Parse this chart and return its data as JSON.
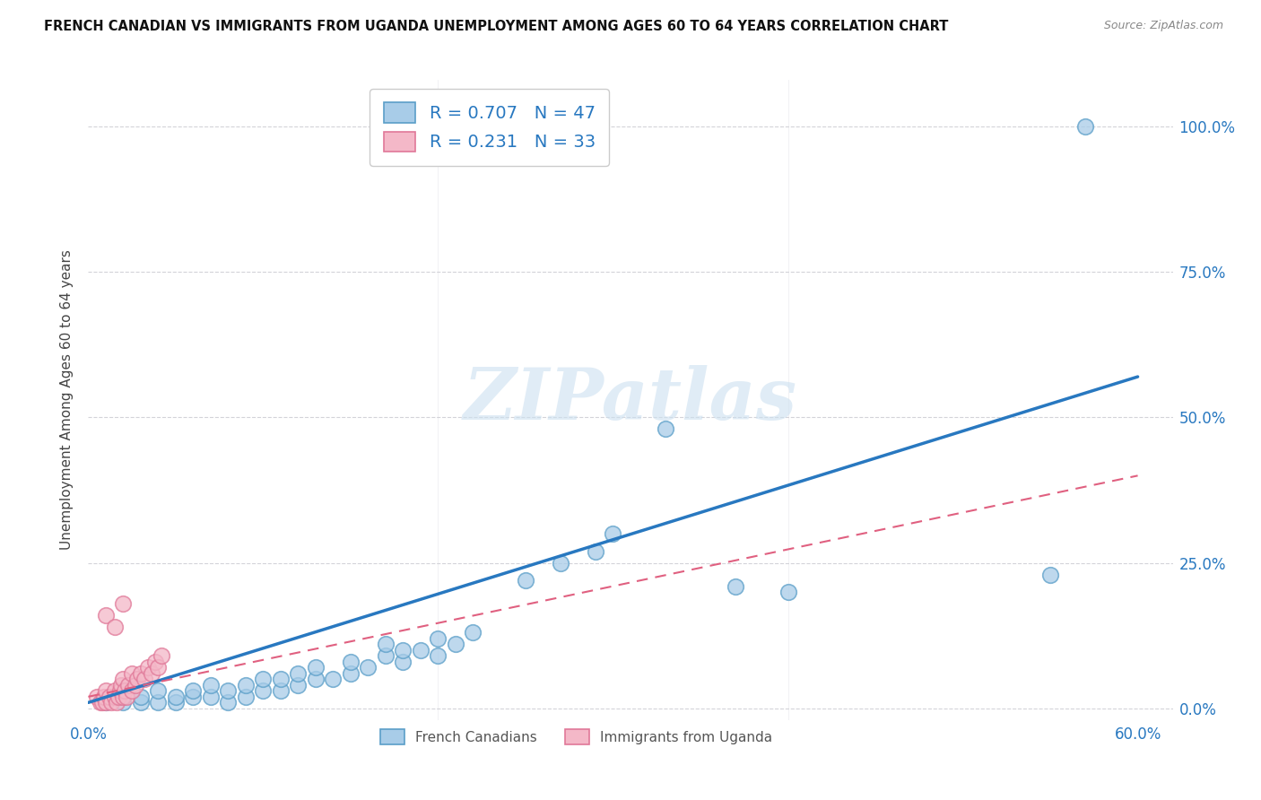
{
  "title": "FRENCH CANADIAN VS IMMIGRANTS FROM UGANDA UNEMPLOYMENT AMONG AGES 60 TO 64 YEARS CORRELATION CHART",
  "source": "Source: ZipAtlas.com",
  "ylabel": "Unemployment Among Ages 60 to 64 years",
  "xlim": [
    0.0,
    0.62
  ],
  "ylim": [
    -0.02,
    1.08
  ],
  "ytick_labels": [
    "0.0%",
    "25.0%",
    "50.0%",
    "75.0%",
    "100.0%"
  ],
  "ytick_vals": [
    0.0,
    0.25,
    0.5,
    0.75,
    1.0
  ],
  "xtick_labels": [
    "0.0%",
    "",
    "",
    "",
    "",
    "",
    "60.0%"
  ],
  "xtick_vals": [
    0.0,
    0.1,
    0.2,
    0.3,
    0.4,
    0.5,
    0.6
  ],
  "watermark": "ZIPatlas",
  "legend_r1": "0.707",
  "legend_n1": "47",
  "legend_r2": "0.231",
  "legend_n2": "33",
  "legend_label1": "French Canadians",
  "legend_label2": "Immigrants from Uganda",
  "blue_color": "#a8cce8",
  "pink_color": "#f4b8c8",
  "blue_edge_color": "#5a9ec8",
  "pink_edge_color": "#e07898",
  "blue_line_color": "#2878c0",
  "pink_line_color": "#e06080",
  "blue_scatter": [
    [
      0.01,
      0.01
    ],
    [
      0.02,
      0.01
    ],
    [
      0.02,
      0.02
    ],
    [
      0.03,
      0.01
    ],
    [
      0.03,
      0.02
    ],
    [
      0.04,
      0.01
    ],
    [
      0.04,
      0.03
    ],
    [
      0.05,
      0.01
    ],
    [
      0.05,
      0.02
    ],
    [
      0.06,
      0.02
    ],
    [
      0.06,
      0.03
    ],
    [
      0.07,
      0.02
    ],
    [
      0.07,
      0.04
    ],
    [
      0.08,
      0.01
    ],
    [
      0.08,
      0.03
    ],
    [
      0.09,
      0.02
    ],
    [
      0.09,
      0.04
    ],
    [
      0.1,
      0.03
    ],
    [
      0.1,
      0.05
    ],
    [
      0.11,
      0.03
    ],
    [
      0.11,
      0.05
    ],
    [
      0.12,
      0.04
    ],
    [
      0.12,
      0.06
    ],
    [
      0.13,
      0.05
    ],
    [
      0.13,
      0.07
    ],
    [
      0.14,
      0.05
    ],
    [
      0.15,
      0.06
    ],
    [
      0.15,
      0.08
    ],
    [
      0.16,
      0.07
    ],
    [
      0.17,
      0.09
    ],
    [
      0.17,
      0.11
    ],
    [
      0.18,
      0.08
    ],
    [
      0.18,
      0.1
    ],
    [
      0.19,
      0.1
    ],
    [
      0.2,
      0.09
    ],
    [
      0.2,
      0.12
    ],
    [
      0.21,
      0.11
    ],
    [
      0.22,
      0.13
    ],
    [
      0.25,
      0.22
    ],
    [
      0.27,
      0.25
    ],
    [
      0.29,
      0.27
    ],
    [
      0.3,
      0.3
    ],
    [
      0.33,
      0.48
    ],
    [
      0.37,
      0.21
    ],
    [
      0.4,
      0.2
    ],
    [
      0.55,
      0.23
    ],
    [
      0.57,
      1.0
    ]
  ],
  "pink_scatter": [
    [
      0.005,
      0.02
    ],
    [
      0.007,
      0.01
    ],
    [
      0.008,
      0.01
    ],
    [
      0.009,
      0.02
    ],
    [
      0.01,
      0.01
    ],
    [
      0.01,
      0.03
    ],
    [
      0.012,
      0.02
    ],
    [
      0.013,
      0.01
    ],
    [
      0.015,
      0.02
    ],
    [
      0.015,
      0.03
    ],
    [
      0.016,
      0.01
    ],
    [
      0.017,
      0.02
    ],
    [
      0.018,
      0.03
    ],
    [
      0.019,
      0.04
    ],
    [
      0.02,
      0.02
    ],
    [
      0.02,
      0.05
    ],
    [
      0.021,
      0.03
    ],
    [
      0.022,
      0.02
    ],
    [
      0.023,
      0.04
    ],
    [
      0.025,
      0.03
    ],
    [
      0.025,
      0.06
    ],
    [
      0.027,
      0.04
    ],
    [
      0.028,
      0.05
    ],
    [
      0.03,
      0.06
    ],
    [
      0.032,
      0.05
    ],
    [
      0.034,
      0.07
    ],
    [
      0.036,
      0.06
    ],
    [
      0.038,
      0.08
    ],
    [
      0.04,
      0.07
    ],
    [
      0.042,
      0.09
    ],
    [
      0.01,
      0.16
    ],
    [
      0.015,
      0.14
    ],
    [
      0.02,
      0.18
    ]
  ],
  "blue_line_x": [
    0.0,
    0.6
  ],
  "blue_line_y": [
    0.01,
    0.57
  ],
  "pink_line_x": [
    0.0,
    0.6
  ],
  "pink_line_y": [
    0.02,
    0.4
  ]
}
